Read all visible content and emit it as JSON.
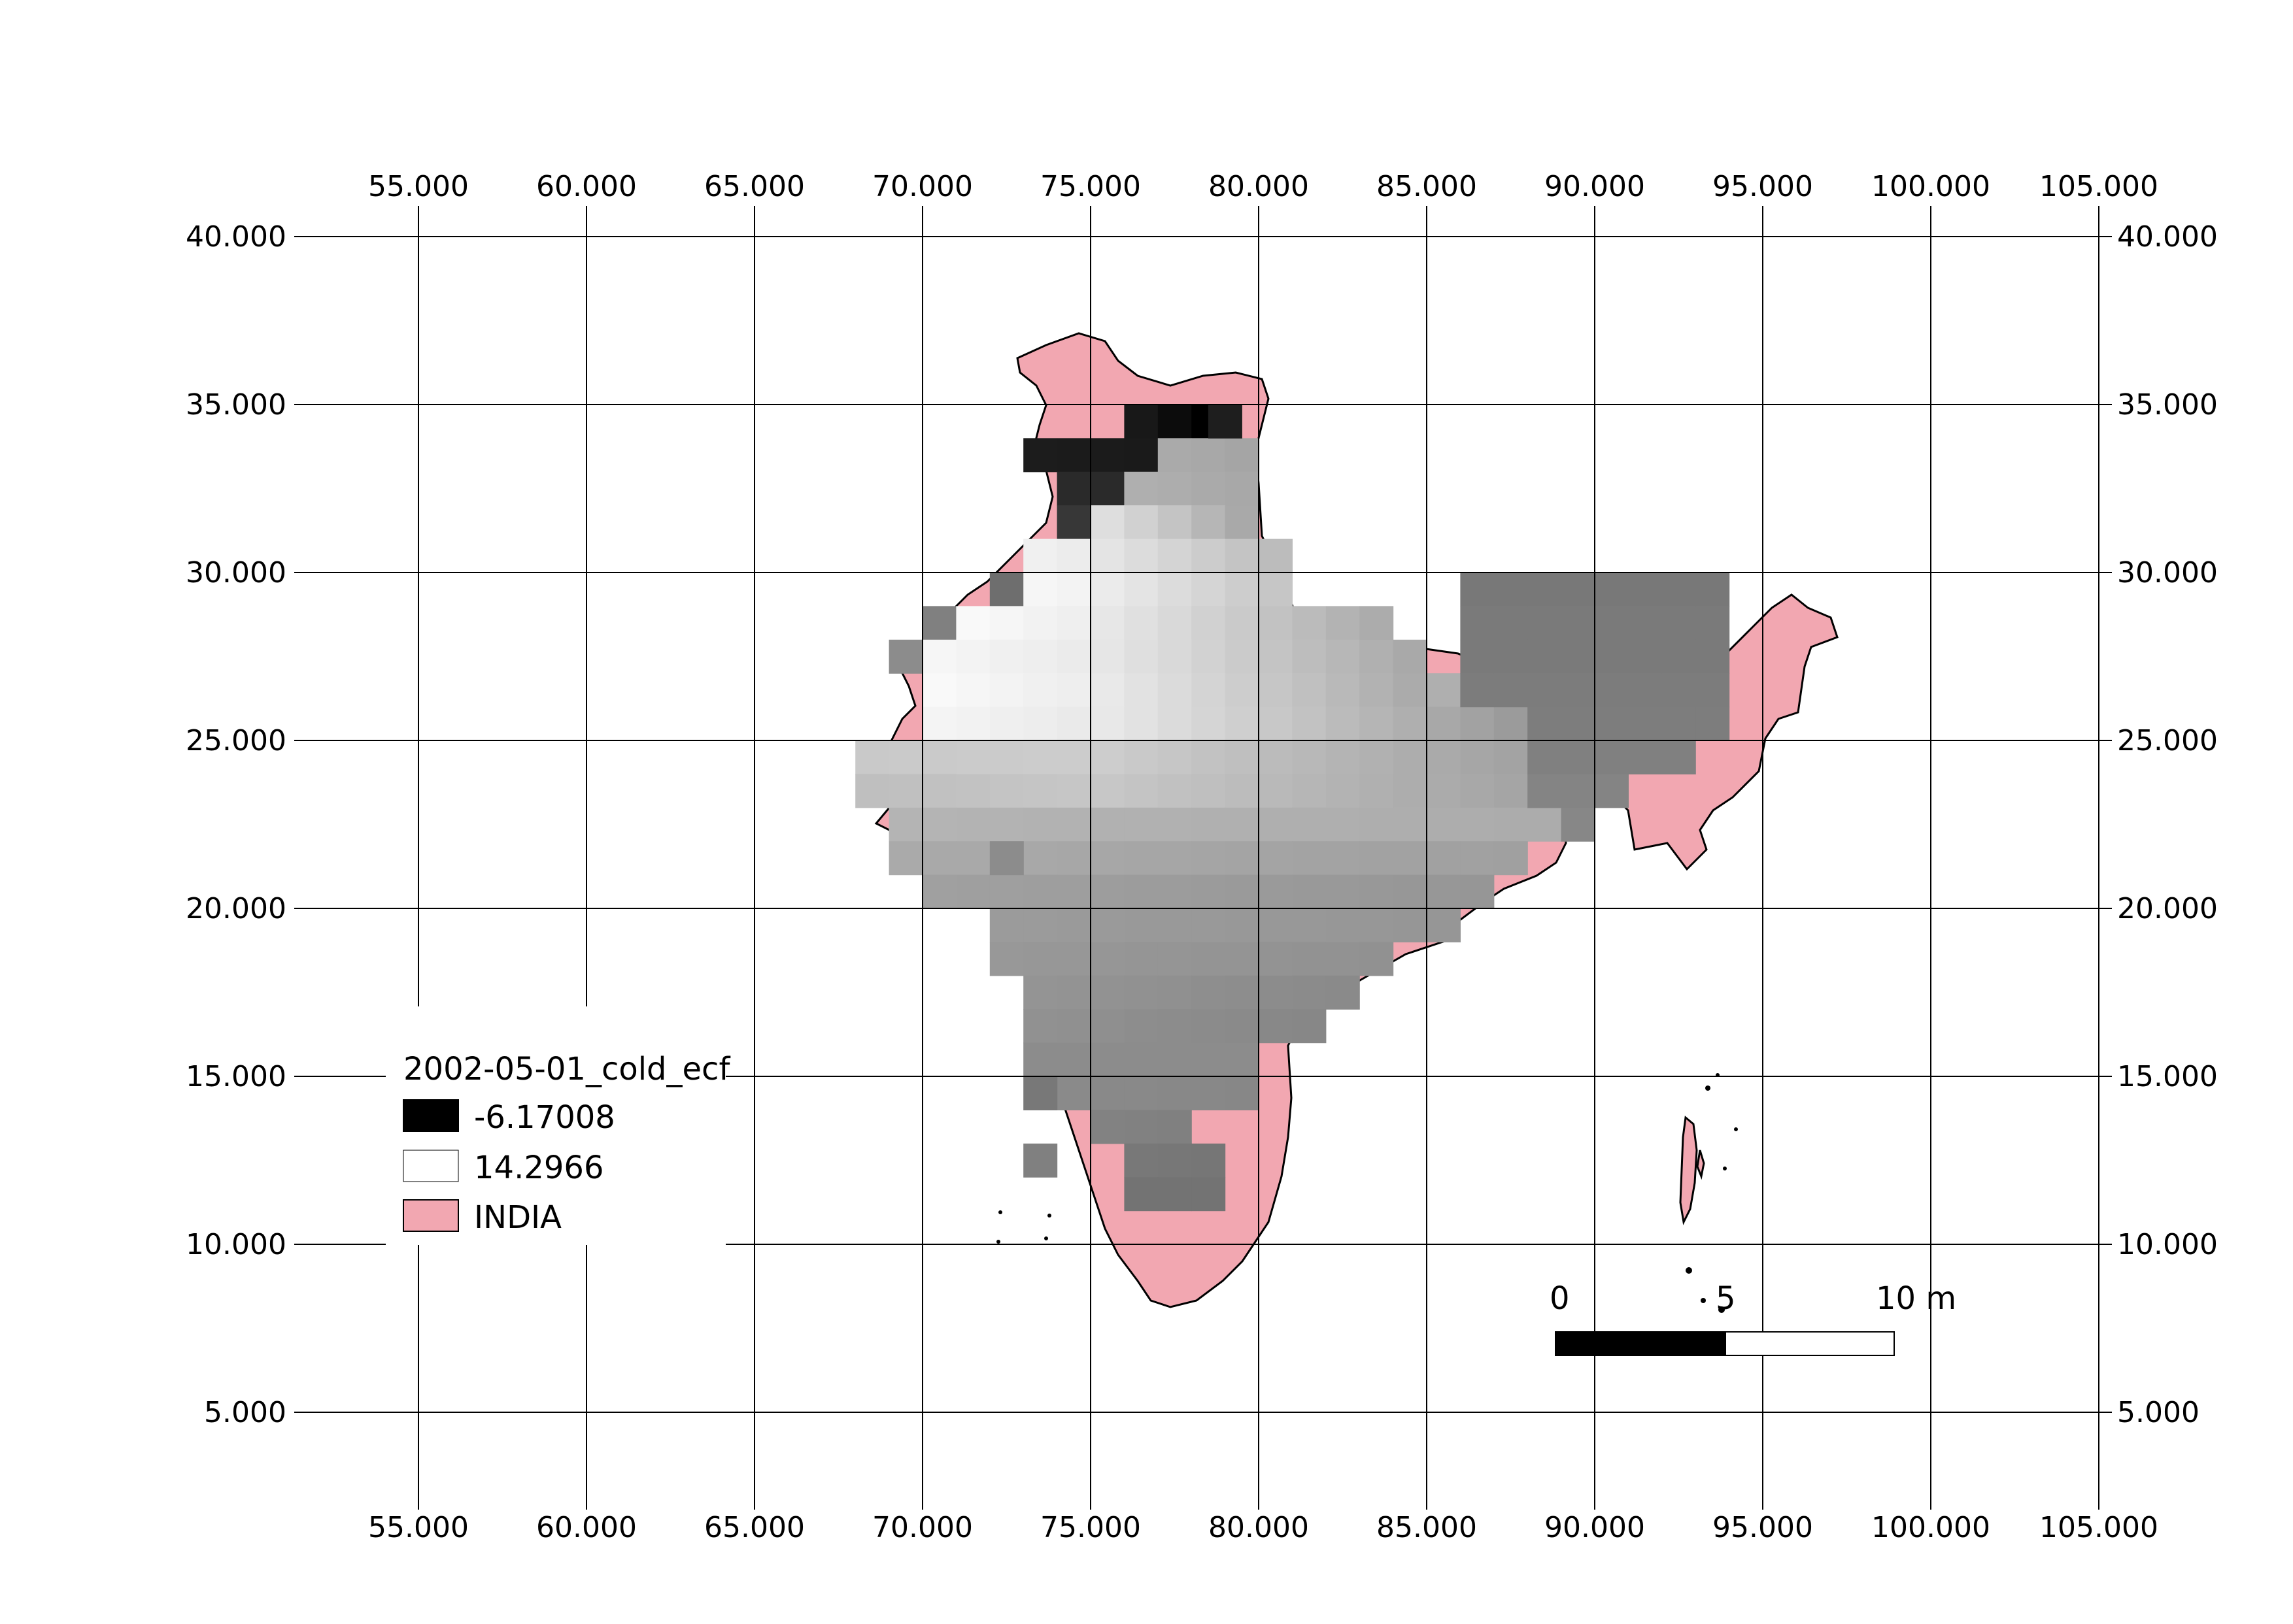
{
  "map": {
    "grid": {
      "x_labels": [
        "55.000",
        "60.000",
        "65.000",
        "70.000",
        "75.000",
        "80.000",
        "85.000",
        "90.000",
        "95.000",
        "100.000",
        "105.000"
      ],
      "y_labels": [
        "40.000",
        "35.000",
        "30.000",
        "25.000",
        "20.000",
        "15.000",
        "10.000",
        "5.000"
      ]
    },
    "legend": {
      "title": "2002-05-01_cold_ecf",
      "items": [
        {
          "label": "-6.17008",
          "color": "#000000"
        },
        {
          "label": "14.2966",
          "color": "#ffffff"
        },
        {
          "label": "INDIA",
          "color": "#f2a7b1"
        }
      ]
    },
    "scalebar": {
      "labels": [
        "0",
        "5",
        "10 m"
      ]
    },
    "colors": {
      "country_fill": "#f2a7b1",
      "country_outline": "#000000",
      "raster_min": "#000000",
      "raster_max": "#ffffff"
    }
  }
}
